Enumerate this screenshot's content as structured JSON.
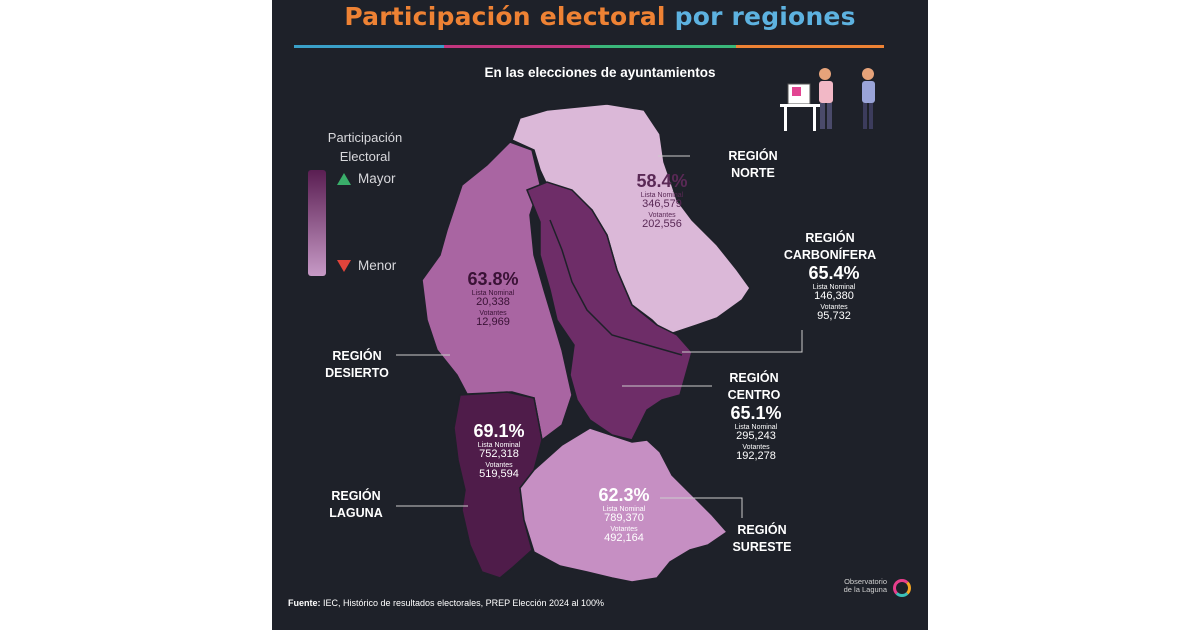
{
  "title": {
    "part1": "Participación electoral",
    "part2": "por regiones"
  },
  "subtitle": "En las elecciones de ayuntamientos",
  "legend": {
    "title_line1": "Participación",
    "title_line2": "Electoral",
    "high": "Mayor",
    "low": "Menor"
  },
  "colors": {
    "background": "#1e2129",
    "title_orange": "#ee8234",
    "title_blue": "#5db2e0",
    "darkest": "#4f1c4a",
    "dark": "#6e2d68",
    "medium": "#a965a2",
    "light": "#dbb8d8",
    "lightest": "#e7c9e4"
  },
  "regions": [
    {
      "key": "norte",
      "line1": "REGIÓN",
      "line2": "NORTE",
      "pct": "58.4%",
      "lista_label": "Lista Nominal",
      "lista": "346,579",
      "votantes_label": "Votantes",
      "votantes": "202,556"
    },
    {
      "key": "carbonifera",
      "line1": "REGIÓN",
      "line2": "CARBONÍFERA",
      "pct": "65.4%",
      "lista_label": "Lista Nominal",
      "lista": "146,380",
      "votantes_label": "Votantes",
      "votantes": "95,732"
    },
    {
      "key": "desierto",
      "line1": "REGIÓN",
      "line2": "DESIERTO",
      "pct": "63.8%",
      "lista_label": "Lista Nominal",
      "lista": "20,338",
      "votantes_label": "Votantes",
      "votantes": "12,969"
    },
    {
      "key": "centro",
      "line1": "REGIÓN",
      "line2": "CENTRO",
      "pct": "65.1%",
      "lista_label": "Lista Nominal",
      "lista": "295,243",
      "votantes_label": "Votantes",
      "votantes": "192,278"
    },
    {
      "key": "laguna",
      "line1": "REGIÓN",
      "line2": "LAGUNA",
      "pct": "69.1%",
      "lista_label": "Lista Nominal",
      "lista": "752,318",
      "votantes_label": "Votantes",
      "votantes": "519,594"
    },
    {
      "key": "sureste",
      "line1": "REGIÓN",
      "line2": "SURESTE",
      "pct": "62.3%",
      "lista_label": "Lista Nominal",
      "lista": "789,370",
      "votantes_label": "Votantes",
      "votantes": "492,164"
    }
  ],
  "source": {
    "label": "Fuente:",
    "text": "IEC, Histórico de resultados electorales, PREP Elección 2024 al 100%"
  },
  "logo": {
    "line1": "Observatorio",
    "line2": "de la Laguna"
  },
  "icons": {
    "legend_up": "triangle-up-icon",
    "legend_down": "triangle-down-icon",
    "voters": "voting-people-illustration",
    "logo": "observatorio-logo"
  }
}
